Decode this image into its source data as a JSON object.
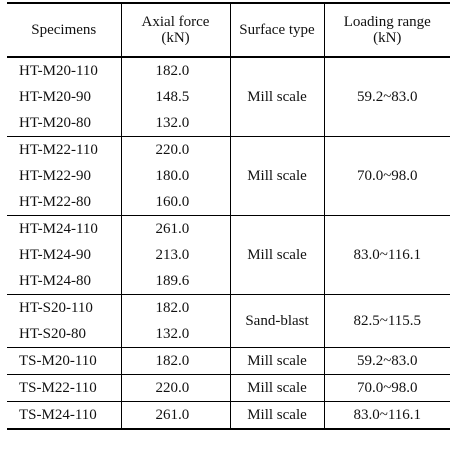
{
  "table": {
    "headers": [
      {
        "line1": "Specimens",
        "line2": ""
      },
      {
        "line1": "Axial force",
        "line2": "(kN)"
      },
      {
        "line1": "Surface type",
        "line2": ""
      },
      {
        "line1": "Loading range",
        "line2": "(kN)"
      }
    ],
    "groups": [
      {
        "surface": "Mill scale",
        "range": "59.2~83.0",
        "rows": [
          {
            "id": "HT-M20-110",
            "force": "182.0"
          },
          {
            "id": "HT-M20-90",
            "force": "148.5"
          },
          {
            "id": "HT-M20-80",
            "force": "132.0"
          }
        ]
      },
      {
        "surface": "Mill scale",
        "range": "70.0~98.0",
        "rows": [
          {
            "id": "HT-M22-110",
            "force": "220.0"
          },
          {
            "id": "HT-M22-90",
            "force": "180.0"
          },
          {
            "id": "HT-M22-80",
            "force": "160.0"
          }
        ]
      },
      {
        "surface": "Mill scale",
        "range": "83.0~116.1",
        "rows": [
          {
            "id": "HT-M24-110",
            "force": "261.0"
          },
          {
            "id": "HT-M24-90",
            "force": "213.0"
          },
          {
            "id": "HT-M24-80",
            "force": "189.6"
          }
        ]
      },
      {
        "surface": "Sand-blast",
        "range": "82.5~115.5",
        "rows": [
          {
            "id": "HT-S20-110",
            "force": "182.0"
          },
          {
            "id": "HT-S20-80",
            "force": "132.0"
          }
        ]
      },
      {
        "surface": "Mill scale",
        "range": "59.2~83.0",
        "rows": [
          {
            "id": "TS-M20-110",
            "force": "182.0"
          }
        ]
      },
      {
        "surface": "Mill scale",
        "range": "70.0~98.0",
        "rows": [
          {
            "id": "TS-M22-110",
            "force": "220.0"
          }
        ]
      },
      {
        "surface": "Mill scale",
        "range": "83.0~116.1",
        "rows": [
          {
            "id": "TS-M24-110",
            "force": "261.0"
          }
        ]
      }
    ]
  }
}
